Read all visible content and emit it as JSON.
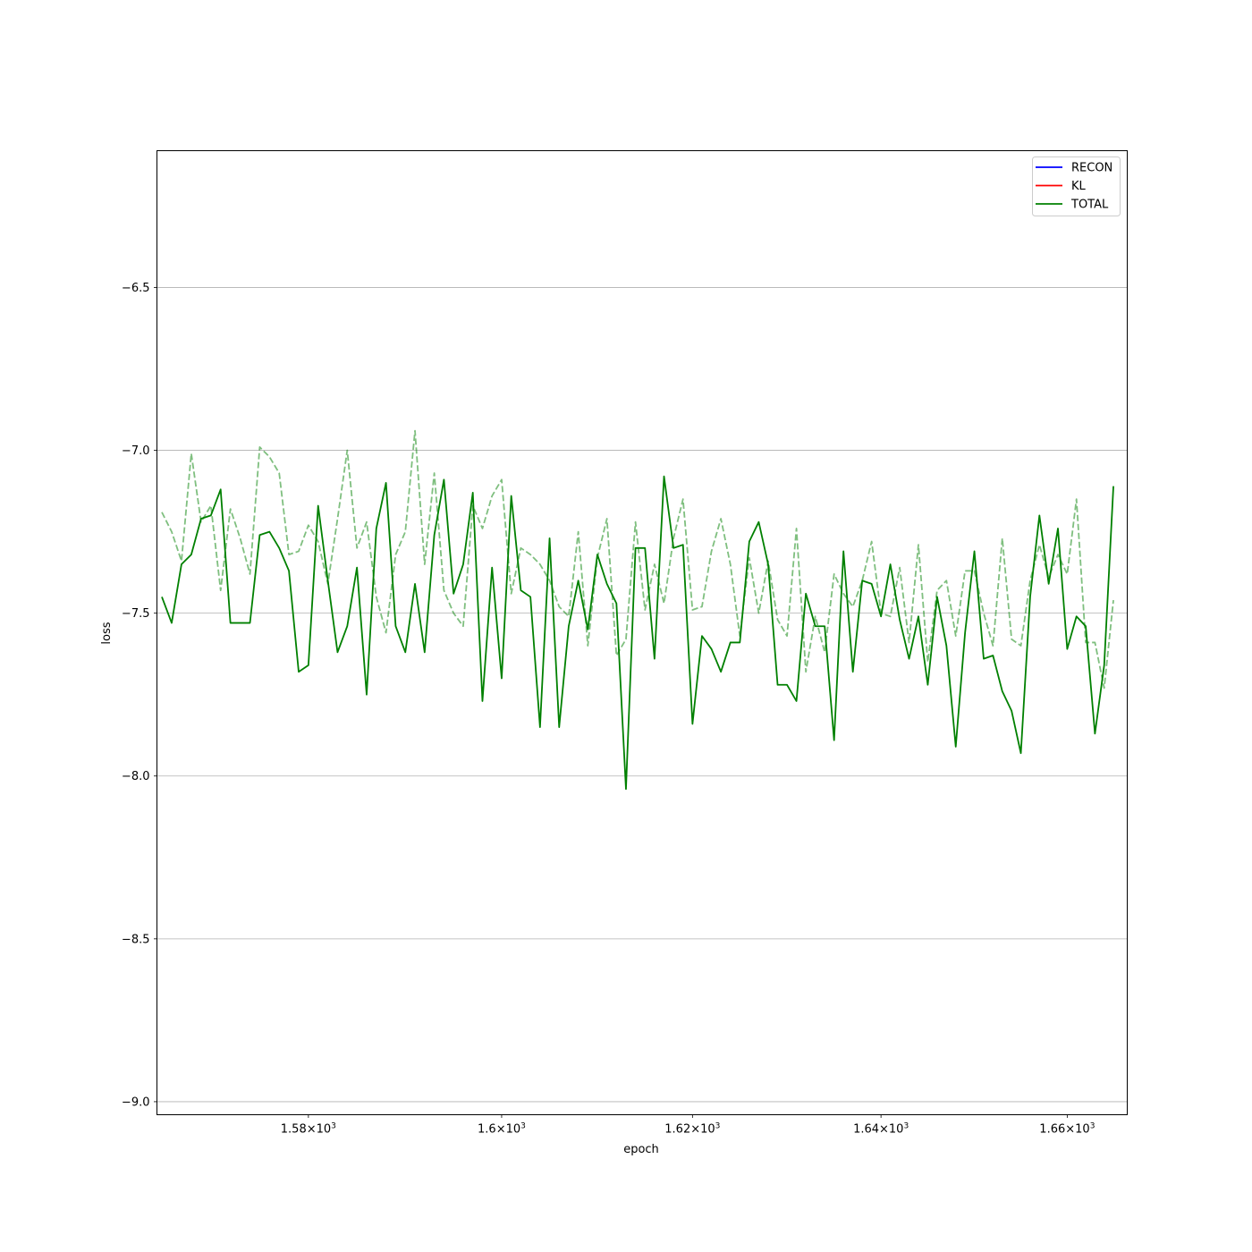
{
  "chart_data": {
    "type": "line",
    "xlabel": "epoch",
    "ylabel": "loss",
    "x_scale": "log",
    "xlim": [
      1564.5,
      1666.5
    ],
    "ylim": [
      -9.04,
      -6.08
    ],
    "grid": "y-major",
    "legend_position": "upper right",
    "x_ticks": [
      {
        "value": 1580,
        "mantissa": "1.58",
        "base": "10",
        "exp": "3"
      },
      {
        "value": 1600,
        "mantissa": "1.6",
        "base": "10",
        "exp": "3"
      },
      {
        "value": 1620,
        "mantissa": "1.62",
        "base": "10",
        "exp": "3"
      },
      {
        "value": 1640,
        "mantissa": "1.64",
        "base": "10",
        "exp": "3"
      },
      {
        "value": 1660,
        "mantissa": "1.66",
        "base": "10",
        "exp": "3"
      }
    ],
    "y_ticks": [
      {
        "value": -6.5,
        "label": "−6.5"
      },
      {
        "value": -7.0,
        "label": "−7.0"
      },
      {
        "value": -7.5,
        "label": "−7.5"
      },
      {
        "value": -8.0,
        "label": "−8.0"
      },
      {
        "value": -8.5,
        "label": "−8.5"
      },
      {
        "value": -9.0,
        "label": "−9.0"
      }
    ],
    "x_start": 1565,
    "x_step": 1,
    "legend": [
      {
        "name": "RECON",
        "color": "#0000ff"
      },
      {
        "name": "KL",
        "color": "#ff0000"
      },
      {
        "name": "TOTAL",
        "color": "#008000"
      }
    ],
    "series": [
      {
        "name": "TOTAL",
        "color": "#008000",
        "style": "solid",
        "values": [
          -7.45,
          -7.53,
          -7.35,
          -7.32,
          -7.21,
          -7.2,
          -7.12,
          -7.53,
          -7.53,
          -7.53,
          -7.26,
          -7.25,
          -7.3,
          -7.37,
          -7.68,
          -7.66,
          -7.17,
          -7.4,
          -7.62,
          -7.54,
          -7.36,
          -7.75,
          -7.24,
          -7.1,
          -7.54,
          -7.62,
          -7.41,
          -7.62,
          -7.26,
          -7.09,
          -7.44,
          -7.35,
          -7.13,
          -7.77,
          -7.36,
          -7.7,
          -7.14,
          -7.43,
          -7.45,
          -7.85,
          -7.27,
          -7.85,
          -7.54,
          -7.4,
          -7.55,
          -7.32,
          -7.41,
          -7.47,
          -8.04,
          -7.3,
          -7.3,
          -7.64,
          -7.08,
          -7.3,
          -7.29,
          -7.84,
          -7.57,
          -7.61,
          -7.68,
          -7.59,
          -7.59,
          -7.28,
          -7.22,
          -7.35,
          -7.72,
          -7.72,
          -7.77,
          -7.44,
          -7.54,
          -7.54,
          -7.89,
          -7.31,
          -7.68,
          -7.4,
          -7.41,
          -7.51,
          -7.35,
          -7.52,
          -7.64,
          -7.51,
          -7.72,
          -7.45,
          -7.6,
          -7.91,
          -7.56,
          -7.31,
          -7.64,
          -7.63,
          -7.74,
          -7.8,
          -7.93,
          -7.45,
          -7.2,
          -7.41,
          -7.24,
          -7.61,
          -7.51,
          -7.54,
          -7.87,
          -7.66,
          -7.11
        ]
      },
      {
        "name": "",
        "color": "#008000",
        "style": "dashed",
        "opacity": 0.5,
        "values": [
          -7.19,
          -7.25,
          -7.34,
          -7.01,
          -7.22,
          -7.17,
          -7.43,
          -7.18,
          -7.27,
          -7.38,
          -6.99,
          -7.02,
          -7.07,
          -7.32,
          -7.31,
          -7.23,
          -7.28,
          -7.41,
          -7.21,
          -7.0,
          -7.3,
          -7.22,
          -7.45,
          -7.56,
          -7.32,
          -7.25,
          -6.94,
          -7.35,
          -7.07,
          -7.43,
          -7.5,
          -7.54,
          -7.17,
          -7.24,
          -7.14,
          -7.09,
          -7.44,
          -7.3,
          -7.32,
          -7.35,
          -7.4,
          -7.48,
          -7.51,
          -7.25,
          -7.6,
          -7.33,
          -7.21,
          -7.63,
          -7.58,
          -7.22,
          -7.49,
          -7.35,
          -7.47,
          -7.27,
          -7.15,
          -7.49,
          -7.48,
          -7.31,
          -7.21,
          -7.35,
          -7.57,
          -7.33,
          -7.5,
          -7.34,
          -7.52,
          -7.57,
          -7.24,
          -7.68,
          -7.51,
          -7.62,
          -7.38,
          -7.44,
          -7.48,
          -7.4,
          -7.28,
          -7.5,
          -7.51,
          -7.36,
          -7.59,
          -7.29,
          -7.65,
          -7.43,
          -7.4,
          -7.57,
          -7.37,
          -7.37,
          -7.5,
          -7.6,
          -7.27,
          -7.58,
          -7.6,
          -7.4,
          -7.29,
          -7.39,
          -7.32,
          -7.38,
          -7.15,
          -7.59,
          -7.59,
          -7.73,
          -7.46
        ]
      }
    ]
  }
}
